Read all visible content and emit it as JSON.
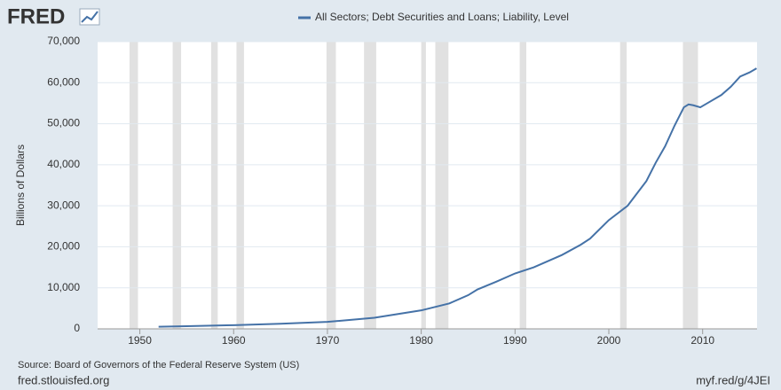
{
  "chart_data": {
    "type": "line",
    "logo": "FRED",
    "y_label": "Billions of Dollars",
    "source": "Source: Board of Governors of the Federal Reserve System (US)",
    "footer_left": "fred.stlouisfed.org",
    "footer_right": "myf.red/g/4JEI",
    "series": [
      {
        "name": "All Sectors; Debt Securities and Loans; Liability, Level",
        "color": "#4572a7",
        "x": [
          1952,
          1955,
          1960,
          1965,
          1970,
          1975,
          1980,
          1983,
          1985,
          1986,
          1988,
          1990,
          1992,
          1995,
          1997,
          1998,
          2000,
          2002,
          2004,
          2005,
          2006,
          2007,
          2008,
          2008.5,
          2009,
          2009.75,
          2010.5,
          2012,
          2013,
          2014,
          2015,
          2015.75
        ],
        "values": [
          500,
          650,
          900,
          1250,
          1700,
          2700,
          4500,
          6200,
          8200,
          9600,
          11500,
          13500,
          15000,
          18000,
          20500,
          22000,
          26500,
          30000,
          36000,
          40500,
          44500,
          49500,
          54000,
          54700,
          54500,
          54000,
          55000,
          57000,
          59000,
          61500,
          62500,
          63500
        ]
      }
    ],
    "recessions": [
      [
        1948.9,
        1949.8
      ],
      [
        1953.5,
        1954.4
      ],
      [
        1957.6,
        1958.3
      ],
      [
        1960.3,
        1961.1
      ],
      [
        1969.9,
        1970.9
      ],
      [
        1973.9,
        1975.2
      ],
      [
        1980.0,
        1980.5
      ],
      [
        1981.5,
        1982.9
      ],
      [
        1990.5,
        1991.2
      ],
      [
        2001.2,
        2001.9
      ],
      [
        2007.9,
        2009.5
      ]
    ],
    "recession_color": "#e1e1e1",
    "xlim": [
      1945.5,
      2015.8
    ],
    "xticks": [
      1950,
      1960,
      1970,
      1980,
      1990,
      2000,
      2010
    ],
    "ylim": [
      0,
      70000
    ],
    "yticks": [
      0,
      {
        "value": 10000,
        "label": "10,000"
      },
      {
        "value": 20000,
        "label": "20,000"
      },
      {
        "value": 30000,
        "label": "30,000"
      },
      {
        "value": 40000,
        "label": "40,000"
      },
      {
        "value": 50000,
        "label": "50,000"
      },
      {
        "value": 60000,
        "label": "60,000"
      },
      {
        "value": 70000,
        "label": "70,000"
      }
    ],
    "grid": true
  }
}
